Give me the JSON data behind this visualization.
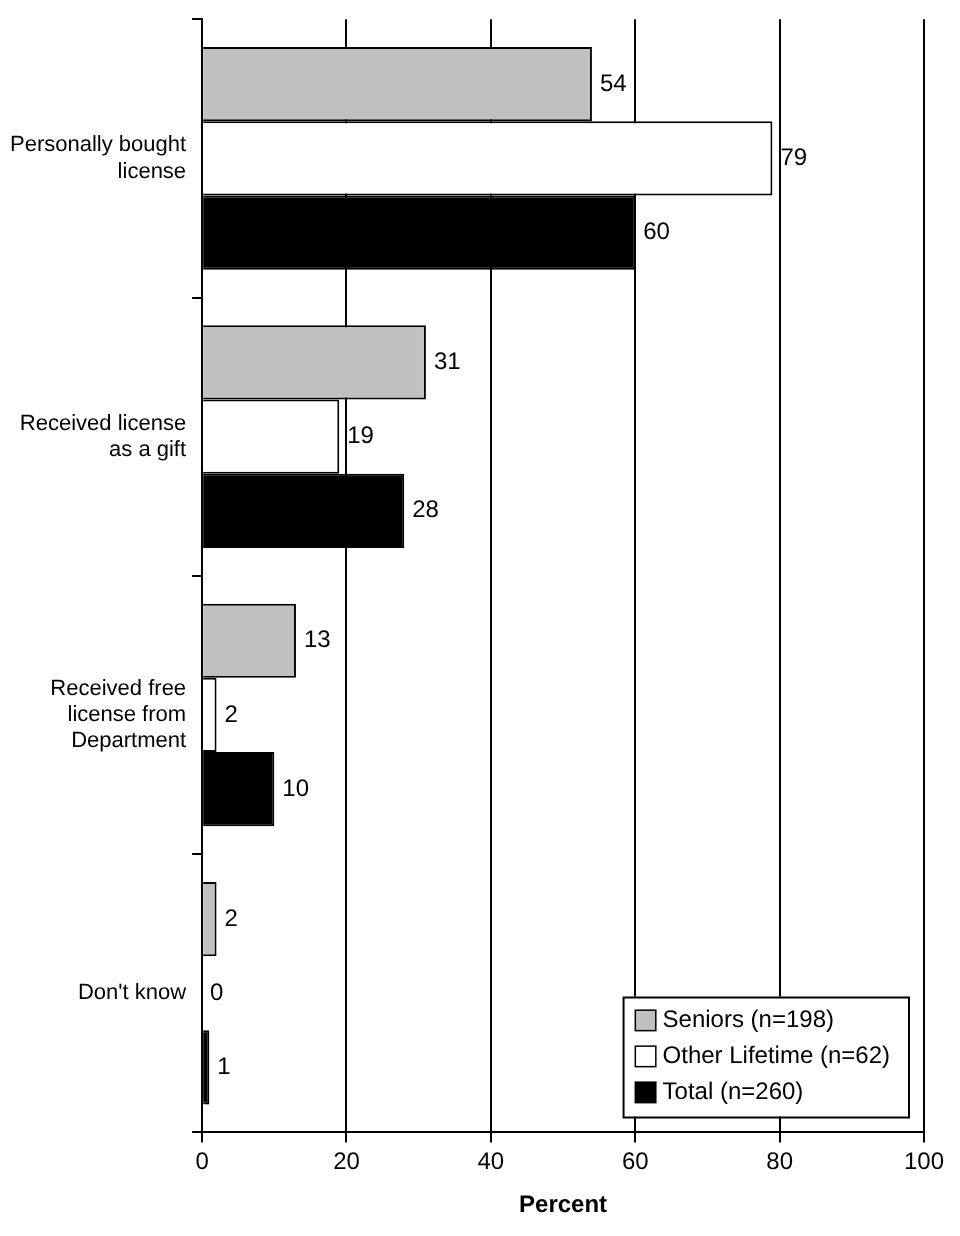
{
  "chart_data": {
    "type": "bar",
    "orientation": "horizontal",
    "xlabel": "Percent",
    "categories": [
      "Personally bought license",
      "Received license as a gift",
      "Received free license from Department",
      "Don't know"
    ],
    "series": [
      {
        "name": "Seniors (n=198)",
        "color": "#c0c0c0",
        "values": [
          54,
          31,
          13,
          2
        ]
      },
      {
        "name": "Other Lifetime (n=62)",
        "color": "#ffffff",
        "values": [
          79,
          19,
          2,
          0
        ]
      },
      {
        "name": "Total (n=260)",
        "color": "#000000",
        "values": [
          60,
          28,
          10,
          1
        ]
      }
    ],
    "xlim": [
      0,
      100
    ],
    "xticks": [
      0,
      20,
      40,
      60,
      80,
      100
    ],
    "grid": "x",
    "legend": "bottom right",
    "data_labels": true
  }
}
